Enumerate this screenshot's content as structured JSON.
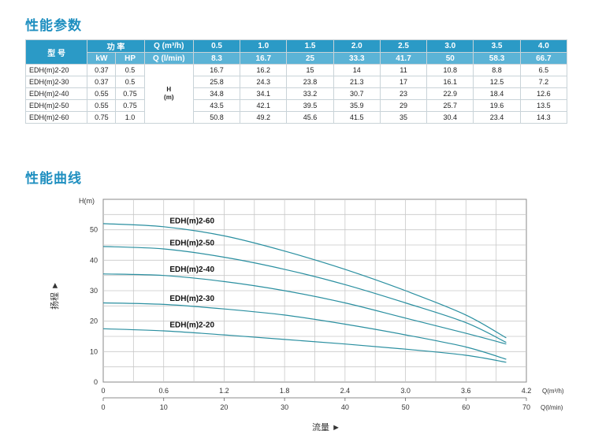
{
  "titles": {
    "performance_params": "性能参数",
    "performance_curve": "性能曲线"
  },
  "table": {
    "model_header": "型 号",
    "power_header": "功 率",
    "kw_header": "kW",
    "hp_header": "HP",
    "q_m3h_header": "Q (m³/h)",
    "q_lmin_header": "Q (l/min)",
    "q_m3h_values": [
      "0.5",
      "1.0",
      "1.5",
      "2.0",
      "2.5",
      "3.0",
      "3.5",
      "4.0"
    ],
    "q_lmin_values": [
      "8.3",
      "16.7",
      "25",
      "33.3",
      "41.7",
      "50",
      "58.3",
      "66.7"
    ],
    "h_label_line1": "H",
    "h_label_line2": "(m)",
    "rows": [
      {
        "model": "EDH(m)2-20",
        "kw": "0.37",
        "hp": "0.5",
        "h": [
          "16.7",
          "16.2",
          "15",
          "14",
          "11",
          "10.8",
          "8.8",
          "6.5"
        ]
      },
      {
        "model": "EDH(m)2-30",
        "kw": "0.37",
        "hp": "0.5",
        "h": [
          "25.8",
          "24.3",
          "23.8",
          "21.3",
          "17",
          "16.1",
          "12.5",
          "7.2"
        ]
      },
      {
        "model": "EDH(m)2-40",
        "kw": "0.55",
        "hp": "0.75",
        "h": [
          "34.8",
          "34.1",
          "33.2",
          "30.7",
          "23",
          "22.9",
          "18.4",
          "12.6"
        ]
      },
      {
        "model": "EDH(m)2-50",
        "kw": "0.55",
        "hp": "0.75",
        "h": [
          "43.5",
          "42.1",
          "39.5",
          "35.9",
          "29",
          "25.7",
          "19.6",
          "13.5"
        ]
      },
      {
        "model": "EDH(m)2-60",
        "kw": "0.75",
        "hp": "1.0",
        "h": [
          "50.8",
          "49.2",
          "45.6",
          "41.5",
          "35",
          "30.4",
          "23.4",
          "14.3"
        ]
      }
    ]
  },
  "chart_data": {
    "type": "line",
    "ylabel_top": "H(m)",
    "ylabel_side": "扬程 ►",
    "xlabel": "流量 ►",
    "x1_unit": "Q(m³/h)",
    "x2_unit": "Q(l/min)",
    "xlim": [
      0,
      4.2
    ],
    "ylim": [
      0,
      60
    ],
    "x_ticks": [
      "0",
      "0.6",
      "1.2",
      "1.8",
      "2.4",
      "3.0",
      "3.6",
      "4.2"
    ],
    "x2_ticks": [
      "0",
      "10",
      "20",
      "30",
      "40",
      "50",
      "60",
      "70"
    ],
    "y_ticks": [
      "0",
      "10",
      "20",
      "30",
      "40",
      "50"
    ],
    "grid": true,
    "colors": {
      "curve": "#2a8fa0",
      "grid": "#c8c8c8",
      "accent": "#1f8fc0"
    },
    "series": [
      {
        "name": "EDH(m)2-60",
        "points": [
          [
            0,
            52
          ],
          [
            0.6,
            51
          ],
          [
            1.2,
            48
          ],
          [
            1.8,
            43
          ],
          [
            2.4,
            37
          ],
          [
            3.0,
            30
          ],
          [
            3.6,
            22
          ],
          [
            4.0,
            14.5
          ]
        ]
      },
      {
        "name": "EDH(m)2-50",
        "points": [
          [
            0,
            44.5
          ],
          [
            0.6,
            43.7
          ],
          [
            1.2,
            41
          ],
          [
            1.8,
            37
          ],
          [
            2.4,
            32
          ],
          [
            3.0,
            26
          ],
          [
            3.6,
            19.5
          ],
          [
            4.0,
            13
          ]
        ]
      },
      {
        "name": "EDH(m)2-40",
        "points": [
          [
            0,
            35.5
          ],
          [
            0.6,
            35
          ],
          [
            1.2,
            33
          ],
          [
            1.8,
            30
          ],
          [
            2.4,
            26
          ],
          [
            3.0,
            21
          ],
          [
            3.6,
            16
          ],
          [
            4.0,
            12.5
          ]
        ]
      },
      {
        "name": "EDH(m)2-30",
        "points": [
          [
            0,
            26
          ],
          [
            0.6,
            25.5
          ],
          [
            1.2,
            24
          ],
          [
            1.8,
            22
          ],
          [
            2.4,
            19
          ],
          [
            3.0,
            15.5
          ],
          [
            3.6,
            11.5
          ],
          [
            4.0,
            7.5
          ]
        ]
      },
      {
        "name": "EDH(m)2-20",
        "points": [
          [
            0,
            17.5
          ],
          [
            0.6,
            16.8
          ],
          [
            1.2,
            15.5
          ],
          [
            1.8,
            14
          ],
          [
            2.4,
            12.5
          ],
          [
            3.0,
            10.8
          ],
          [
            3.6,
            8.8
          ],
          [
            4.0,
            6.5
          ]
        ]
      }
    ]
  }
}
